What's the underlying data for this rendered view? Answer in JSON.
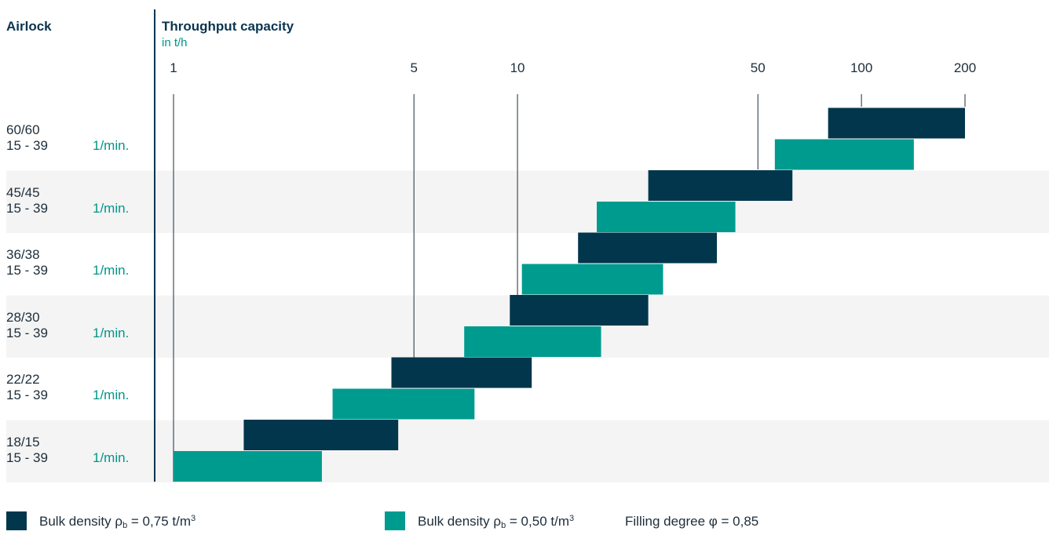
{
  "header": {
    "airlock": "Airlock",
    "throughput": "Throughput capacity",
    "unit": "in t/h"
  },
  "colors": {
    "dark": "#02364d",
    "teal": "#009b8f",
    "stripe": "#f4f4f4"
  },
  "chart_data": {
    "type": "bar",
    "orientation": "horizontal-range",
    "xscale": "log",
    "xticks": [
      1,
      5,
      10,
      50,
      100,
      200
    ],
    "xtick_labels": [
      "1",
      "5",
      "10",
      "50",
      "100",
      "200"
    ],
    "xlim": [
      1,
      400
    ],
    "categories": [
      {
        "name": "60/60",
        "speed": "15 - 39",
        "unit": "1/min."
      },
      {
        "name": "45/45",
        "speed": "15 - 39",
        "unit": "1/min."
      },
      {
        "name": "36/38",
        "speed": "15 - 39",
        "unit": "1/min."
      },
      {
        "name": "28/30",
        "speed": "15 - 39",
        "unit": "1/min."
      },
      {
        "name": "22/22",
        "speed": "15 - 39",
        "unit": "1/min."
      },
      {
        "name": "18/15",
        "speed": "15 - 39",
        "unit": "1/min."
      }
    ],
    "series": [
      {
        "name": "Bulk density ρb = 0,75 t/m3",
        "color": "#02364d",
        "ranges": [
          [
            80,
            200
          ],
          [
            24,
            63
          ],
          [
            15,
            38
          ],
          [
            9.5,
            24
          ],
          [
            4.3,
            11
          ],
          [
            1.6,
            4.5
          ]
        ]
      },
      {
        "name": "Bulk density ρb = 0,50 t/m3",
        "color": "#009b8f",
        "ranges": [
          [
            56,
            142
          ],
          [
            17,
            43
          ],
          [
            10.3,
            26.5
          ],
          [
            7,
            17.5
          ],
          [
            2.9,
            7.5
          ],
          [
            1,
            2.7
          ]
        ]
      }
    ]
  },
  "legend": {
    "item1": {
      "prefix": "Bulk density ρ",
      "sub": "b",
      "suffix": " = 0,75 t/m",
      "sup": "3"
    },
    "item2": {
      "prefix": "Bulk density ρ",
      "sub": "b",
      "suffix": " = 0,50 t/m",
      "sup": "3"
    },
    "filling": "Filling degree φ = 0,85"
  }
}
